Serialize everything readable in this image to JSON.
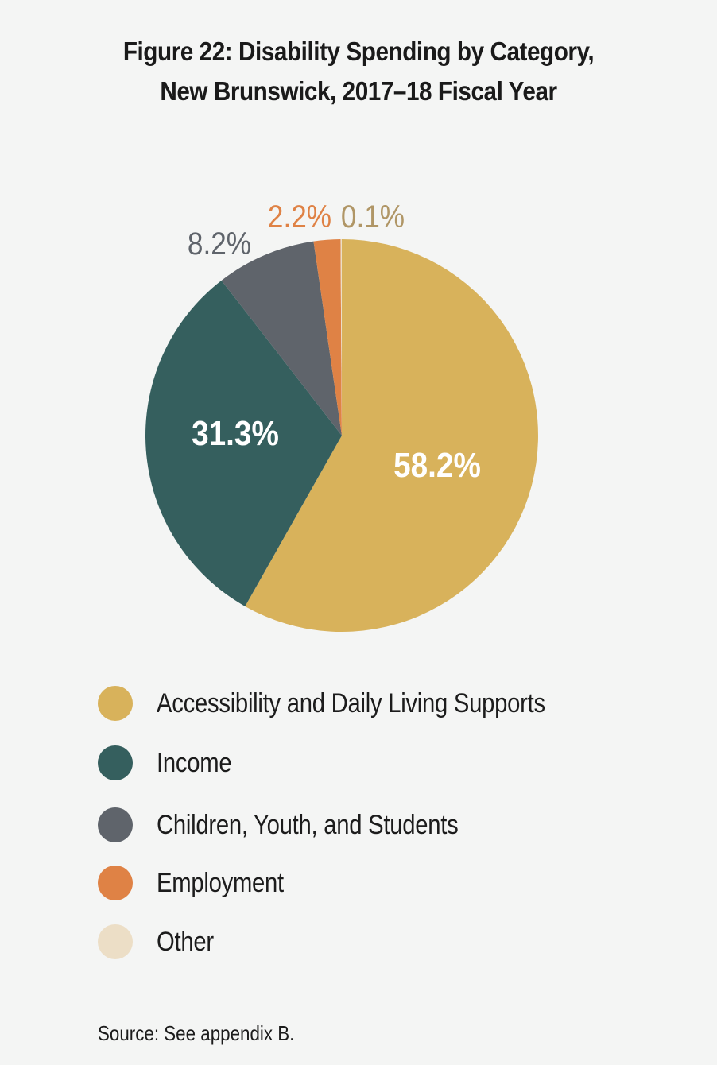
{
  "chart_data": {
    "type": "pie",
    "title_lines": [
      "Figure 22: Disability Spending by Category,",
      "New Brunswick, 2017–18 Fiscal Year"
    ],
    "slices": [
      {
        "name": "Accessibility and Daily Living Supports",
        "value": 58.2,
        "label": "58.2%",
        "color": "#d8b25b",
        "label_color": "#ffffff"
      },
      {
        "name": "Income",
        "value": 31.3,
        "label": "31.3%",
        "color": "#355f5e",
        "label_color": "#ffffff"
      },
      {
        "name": "Children, Youth, and Students",
        "value": 8.2,
        "label": "8.2%",
        "color": "#5f646b",
        "label_color": "#5f646b"
      },
      {
        "name": "Employment",
        "value": 2.2,
        "label": "2.2%",
        "color": "#df8245",
        "label_color": "#df8245"
      },
      {
        "name": "Other",
        "value": 0.1,
        "label": "0.1%",
        "color": "#ecdec6",
        "label_color": "#b09666"
      }
    ],
    "legend_position": "bottom",
    "source": "Source: See appendix B."
  }
}
